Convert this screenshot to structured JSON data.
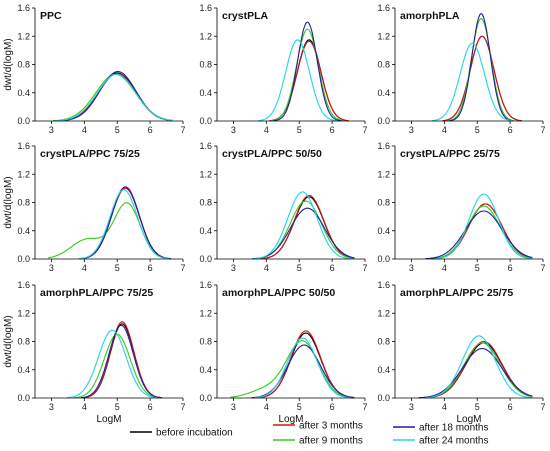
{
  "chart_data": {
    "type": "line",
    "xlabel": "LogM",
    "ylabel": "dwt/d(logM)",
    "xlim": [
      2.5,
      7
    ],
    "ylim": [
      0,
      1.6
    ],
    "xticks": [
      3,
      4,
      5,
      6,
      7
    ],
    "yticks": [
      0.0,
      0.4,
      0.8,
      1.2,
      1.6
    ],
    "grid": false,
    "legend_position": "bottom",
    "series_styles": [
      {
        "name": "before incubation",
        "color": "#000000"
      },
      {
        "name": "after 3 months",
        "color": "#d0181a"
      },
      {
        "name": "after 9 months",
        "color": "#33cc1a"
      },
      {
        "name": "after 18 months",
        "color": "#1f1f9e"
      },
      {
        "name": "after 24 months",
        "color": "#22d3e8"
      }
    ],
    "panels": [
      {
        "title": "PPC",
        "show_ylabel": true,
        "show_xlabel": false,
        "series": [
          {
            "name": "before incubation",
            "center": 5.0,
            "peak": 0.68,
            "sigma": 0.56
          },
          {
            "name": "after 3 months",
            "center": 5.0,
            "peak": 0.67,
            "sigma": 0.56
          },
          {
            "name": "after 9 months",
            "center": 4.95,
            "peak": 0.66,
            "sigma": 0.6
          },
          {
            "name": "after 18 months",
            "center": 5.02,
            "peak": 0.7,
            "sigma": 0.55
          },
          {
            "name": "after 24 months",
            "center": 4.98,
            "peak": 0.66,
            "sigma": 0.58
          }
        ]
      },
      {
        "title": "crystPLA",
        "show_ylabel": false,
        "show_xlabel": false,
        "series": [
          {
            "name": "before incubation",
            "center": 5.3,
            "peak": 1.15,
            "sigma": 0.36
          },
          {
            "name": "after 3 months",
            "center": 5.3,
            "peak": 1.13,
            "sigma": 0.36
          },
          {
            "name": "after 9 months",
            "center": 5.25,
            "peak": 1.3,
            "sigma": 0.33
          },
          {
            "name": "after 18 months",
            "center": 5.25,
            "peak": 1.4,
            "sigma": 0.3
          },
          {
            "name": "after 24 months",
            "center": 4.95,
            "peak": 1.15,
            "sigma": 0.36
          }
        ]
      },
      {
        "title": "amorphPLA",
        "show_ylabel": false,
        "show_xlabel": false,
        "series": [
          {
            "name": "before incubation",
            "center": 5.15,
            "peak": 1.2,
            "sigma": 0.36
          },
          {
            "name": "after 3 months",
            "center": 5.15,
            "peak": 1.2,
            "sigma": 0.36
          },
          {
            "name": "after 9 months",
            "center": 5.12,
            "peak": 1.45,
            "sigma": 0.3
          },
          {
            "name": "after 18 months",
            "center": 5.12,
            "peak": 1.52,
            "sigma": 0.28
          },
          {
            "name": "after 24 months",
            "center": 4.85,
            "peak": 1.1,
            "sigma": 0.37
          }
        ]
      },
      {
        "title": "crystPLA/PPC 75/25",
        "show_ylabel": true,
        "show_xlabel": false,
        "series": [
          {
            "name": "before incubation",
            "center": 5.25,
            "peak": 1.02,
            "sigma": 0.42
          },
          {
            "name": "after 3 months",
            "center": 5.25,
            "peak": 1.0,
            "sigma": 0.42
          },
          {
            "name": "after 9 months",
            "center": 5.3,
            "peak": 0.78,
            "sigma": 0.4,
            "shoulder": {
              "center": 4.1,
              "peak": 0.28,
              "sigma": 0.5
            }
          },
          {
            "name": "after 18 months",
            "center": 5.25,
            "peak": 1.02,
            "sigma": 0.42
          },
          {
            "name": "after 24 months",
            "center": 5.2,
            "peak": 0.98,
            "sigma": 0.42
          }
        ]
      },
      {
        "title": "crystPLA/PPC 50/50",
        "show_ylabel": false,
        "show_xlabel": false,
        "series": [
          {
            "name": "before incubation",
            "center": 5.3,
            "peak": 0.88,
            "sigma": 0.45
          },
          {
            "name": "after 3 months",
            "center": 5.3,
            "peak": 0.9,
            "sigma": 0.45
          },
          {
            "name": "after 9 months",
            "center": 5.2,
            "peak": 0.82,
            "sigma": 0.48
          },
          {
            "name": "after 18 months",
            "center": 5.25,
            "peak": 0.72,
            "sigma": 0.52
          },
          {
            "name": "after 24 months",
            "center": 5.1,
            "peak": 0.95,
            "sigma": 0.45
          }
        ]
      },
      {
        "title": "crystPLA/PPC 25/75",
        "show_ylabel": false,
        "show_xlabel": false,
        "series": [
          {
            "name": "before incubation",
            "center": 5.25,
            "peak": 0.78,
            "sigma": 0.5
          },
          {
            "name": "after 3 months",
            "center": 5.25,
            "peak": 0.78,
            "sigma": 0.5
          },
          {
            "name": "after 9 months",
            "center": 5.2,
            "peak": 0.75,
            "sigma": 0.5
          },
          {
            "name": "after 18 months",
            "center": 5.2,
            "peak": 0.68,
            "sigma": 0.56
          },
          {
            "name": "after 24 months",
            "center": 5.2,
            "peak": 0.92,
            "sigma": 0.45
          }
        ]
      },
      {
        "title": "amorphPLA/PPC 75/25",
        "show_ylabel": true,
        "show_xlabel": true,
        "series": [
          {
            "name": "before incubation",
            "center": 5.15,
            "peak": 1.05,
            "sigma": 0.36
          },
          {
            "name": "after 3 months",
            "center": 5.15,
            "peak": 1.08,
            "sigma": 0.36
          },
          {
            "name": "after 9 months",
            "center": 5.0,
            "peak": 0.9,
            "sigma": 0.4
          },
          {
            "name": "after 18 months",
            "center": 5.12,
            "peak": 1.03,
            "sigma": 0.37
          },
          {
            "name": "after 24 months",
            "center": 4.85,
            "peak": 0.96,
            "sigma": 0.42
          }
        ]
      },
      {
        "title": "amorphPLA/PPC 50/50",
        "show_ylabel": false,
        "show_xlabel": true,
        "series": [
          {
            "name": "before incubation",
            "center": 5.2,
            "peak": 0.92,
            "sigma": 0.45
          },
          {
            "name": "after 3 months",
            "center": 5.2,
            "peak": 0.95,
            "sigma": 0.45
          },
          {
            "name": "after 9 months",
            "center": 5.1,
            "peak": 0.8,
            "sigma": 0.48,
            "shoulder": {
              "center": 4.0,
              "peak": 0.12,
              "sigma": 0.5
            }
          },
          {
            "name": "after 18 months",
            "center": 5.15,
            "peak": 0.75,
            "sigma": 0.5
          },
          {
            "name": "after 24 months",
            "center": 5.1,
            "peak": 0.85,
            "sigma": 0.45
          }
        ]
      },
      {
        "title": "amorphPLA/PPC 25/75",
        "show_ylabel": false,
        "show_xlabel": true,
        "series": [
          {
            "name": "before incubation",
            "center": 5.2,
            "peak": 0.78,
            "sigma": 0.55
          },
          {
            "name": "after 3 months",
            "center": 5.2,
            "peak": 0.8,
            "sigma": 0.55
          },
          {
            "name": "after 9 months",
            "center": 5.15,
            "peak": 0.78,
            "sigma": 0.55
          },
          {
            "name": "after 18 months",
            "center": 5.15,
            "peak": 0.7,
            "sigma": 0.6
          },
          {
            "name": "after 24 months",
            "center": 5.05,
            "peak": 0.88,
            "sigma": 0.5
          }
        ]
      }
    ]
  }
}
